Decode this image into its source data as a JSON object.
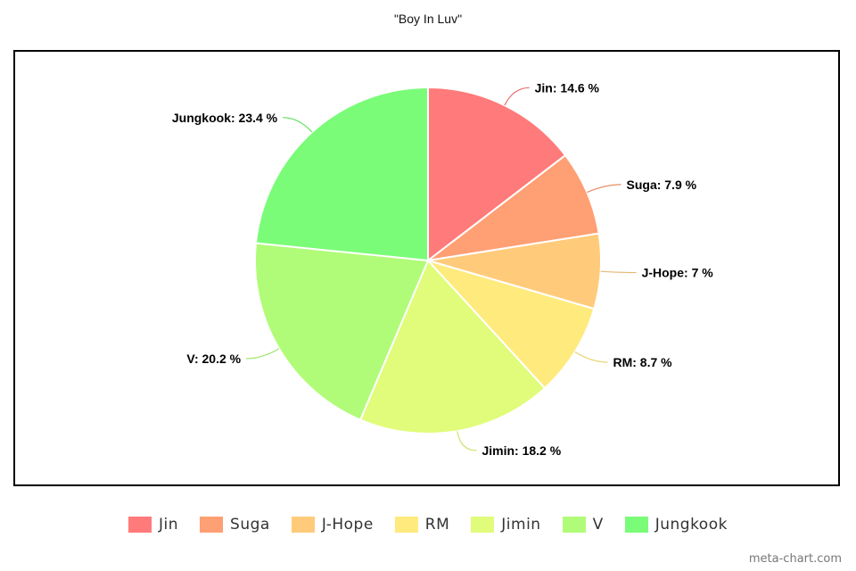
{
  "chart_data": {
    "type": "pie",
    "title": "\"Boy In Luv\"",
    "slices": [
      {
        "label": "Jin",
        "value": 14.6,
        "display": "14.6 %",
        "color": "#ff7a7a"
      },
      {
        "label": "Suga",
        "value": 7.9,
        "display": "7.9 %",
        "color": "#ff9f74"
      },
      {
        "label": "J-Hope",
        "value": 7.0,
        "display": "7 %",
        "color": "#ffcb7b"
      },
      {
        "label": "RM",
        "value": 8.7,
        "display": "8.7 %",
        "color": "#ffea7e"
      },
      {
        "label": "Jimin",
        "value": 18.2,
        "display": "18.2 %",
        "color": "#e0fc7a"
      },
      {
        "label": "V",
        "value": 20.2,
        "display": "20.2 %",
        "color": "#b0fc78"
      },
      {
        "label": "Jungkook",
        "value": 23.4,
        "display": "23.4 %",
        "color": "#7afc78"
      }
    ],
    "legend_position": "bottom",
    "start_angle": "12 o'clock",
    "direction": "clockwise"
  },
  "watermark": "meta-chart.com"
}
